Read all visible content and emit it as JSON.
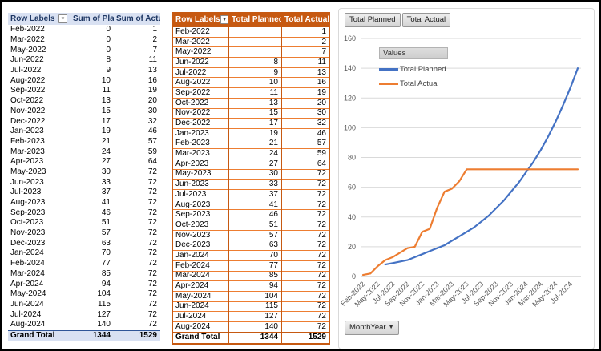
{
  "colors": {
    "planned_line": "#4472C4",
    "actual_line": "#ED7D31",
    "blue_header_bg": "#D9E1F2",
    "blue_header_text": "#1F3864",
    "orange_header_bg": "#C65911",
    "gridline": "#D9D9D9",
    "axis_text": "#595959"
  },
  "pivot_table_blue": {
    "columns": [
      "Row Labels",
      "Sum of Plan",
      "Sum of Actual"
    ],
    "filter_icon": "▼",
    "rows": [
      [
        "Feb-2022",
        "0",
        "1"
      ],
      [
        "Mar-2022",
        "0",
        "2"
      ],
      [
        "May-2022",
        "0",
        "7"
      ],
      [
        "Jun-2022",
        "8",
        "11"
      ],
      [
        "Jul-2022",
        "9",
        "13"
      ],
      [
        "Aug-2022",
        "10",
        "16"
      ],
      [
        "Sep-2022",
        "11",
        "19"
      ],
      [
        "Oct-2022",
        "13",
        "20"
      ],
      [
        "Nov-2022",
        "15",
        "30"
      ],
      [
        "Dec-2022",
        "17",
        "32"
      ],
      [
        "Jan-2023",
        "19",
        "46"
      ],
      [
        "Feb-2023",
        "21",
        "57"
      ],
      [
        "Mar-2023",
        "24",
        "59"
      ],
      [
        "Apr-2023",
        "27",
        "64"
      ],
      [
        "May-2023",
        "30",
        "72"
      ],
      [
        "Jun-2023",
        "33",
        "72"
      ],
      [
        "Jul-2023",
        "37",
        "72"
      ],
      [
        "Aug-2023",
        "41",
        "72"
      ],
      [
        "Sep-2023",
        "46",
        "72"
      ],
      [
        "Oct-2023",
        "51",
        "72"
      ],
      [
        "Nov-2023",
        "57",
        "72"
      ],
      [
        "Dec-2023",
        "63",
        "72"
      ],
      [
        "Jan-2024",
        "70",
        "72"
      ],
      [
        "Feb-2024",
        "77",
        "72"
      ],
      [
        "Mar-2024",
        "85",
        "72"
      ],
      [
        "Apr-2024",
        "94",
        "72"
      ],
      [
        "May-2024",
        "104",
        "72"
      ],
      [
        "Jun-2024",
        "115",
        "72"
      ],
      [
        "Jul-2024",
        "127",
        "72"
      ],
      [
        "Aug-2024",
        "140",
        "72"
      ]
    ],
    "grand_total": [
      "Grand Total",
      "1344",
      "1529"
    ]
  },
  "pivot_table_orange": {
    "columns": [
      "Row Labels",
      "Total Planned",
      "Total Actual"
    ],
    "filter_icon": "▼",
    "rows": [
      [
        "Feb-2022",
        "",
        "1"
      ],
      [
        "Mar-2022",
        "",
        "2"
      ],
      [
        "May-2022",
        "",
        "7"
      ],
      [
        "Jun-2022",
        "8",
        "11"
      ],
      [
        "Jul-2022",
        "9",
        "13"
      ],
      [
        "Aug-2022",
        "10",
        "16"
      ],
      [
        "Sep-2022",
        "11",
        "19"
      ],
      [
        "Oct-2022",
        "13",
        "20"
      ],
      [
        "Nov-2022",
        "15",
        "30"
      ],
      [
        "Dec-2022",
        "17",
        "32"
      ],
      [
        "Jan-2023",
        "19",
        "46"
      ],
      [
        "Feb-2023",
        "21",
        "57"
      ],
      [
        "Mar-2023",
        "24",
        "59"
      ],
      [
        "Apr-2023",
        "27",
        "64"
      ],
      [
        "May-2023",
        "30",
        "72"
      ],
      [
        "Jun-2023",
        "33",
        "72"
      ],
      [
        "Jul-2023",
        "37",
        "72"
      ],
      [
        "Aug-2023",
        "41",
        "72"
      ],
      [
        "Sep-2023",
        "46",
        "72"
      ],
      [
        "Oct-2023",
        "51",
        "72"
      ],
      [
        "Nov-2023",
        "57",
        "72"
      ],
      [
        "Dec-2023",
        "63",
        "72"
      ],
      [
        "Jan-2024",
        "70",
        "72"
      ],
      [
        "Feb-2024",
        "77",
        "72"
      ],
      [
        "Mar-2024",
        "85",
        "72"
      ],
      [
        "Apr-2024",
        "94",
        "72"
      ],
      [
        "May-2024",
        "104",
        "72"
      ],
      [
        "Jun-2024",
        "115",
        "72"
      ],
      [
        "Jul-2024",
        "127",
        "72"
      ],
      [
        "Aug-2024",
        "140",
        "72"
      ]
    ],
    "grand_total": [
      "Grand Total",
      "1344",
      "1529"
    ]
  },
  "chart": {
    "field_buttons": [
      {
        "label": "Total Planned"
      },
      {
        "label": "Total Actual"
      }
    ],
    "legend": {
      "header": "Values",
      "entries": [
        {
          "label": "Total Planned",
          "color": "#4472C4"
        },
        {
          "label": "Total Actual",
          "color": "#ED7D31"
        }
      ]
    },
    "axis_field_button": {
      "label": "MonthYear",
      "dropdown_icon": "▼"
    }
  },
  "chart_data": {
    "type": "line",
    "title": "",
    "xlabel": "",
    "ylabel": "",
    "categories": [
      "Feb-2022",
      "Mar-2022",
      "May-2022",
      "Jun-2022",
      "Jul-2022",
      "Aug-2022",
      "Sep-2022",
      "Oct-2022",
      "Nov-2022",
      "Dec-2022",
      "Jan-2023",
      "Feb-2023",
      "Mar-2023",
      "Apr-2023",
      "May-2023",
      "Jun-2023",
      "Jul-2023",
      "Aug-2023",
      "Sep-2023",
      "Oct-2023",
      "Nov-2023",
      "Dec-2023",
      "Jan-2024",
      "Feb-2024",
      "Mar-2024",
      "Apr-2024",
      "May-2024",
      "Jun-2024",
      "Jul-2024",
      "Aug-2024"
    ],
    "series": [
      {
        "name": "Total Planned",
        "color": "#4472C4",
        "values": [
          null,
          null,
          null,
          8,
          9,
          10,
          11,
          13,
          15,
          17,
          19,
          21,
          24,
          27,
          30,
          33,
          37,
          41,
          46,
          51,
          57,
          63,
          70,
          77,
          85,
          94,
          104,
          115,
          127,
          140
        ]
      },
      {
        "name": "Total Actual",
        "color": "#ED7D31",
        "values": [
          1,
          2,
          7,
          11,
          13,
          16,
          19,
          20,
          30,
          32,
          46,
          57,
          59,
          64,
          72,
          72,
          72,
          72,
          72,
          72,
          72,
          72,
          72,
          72,
          72,
          72,
          72,
          72,
          72,
          72
        ]
      }
    ],
    "ylim": [
      0,
      160
    ],
    "ytick_step": 20,
    "x_label_every": 2,
    "grid": true,
    "legend_position": "top-left-inside"
  }
}
